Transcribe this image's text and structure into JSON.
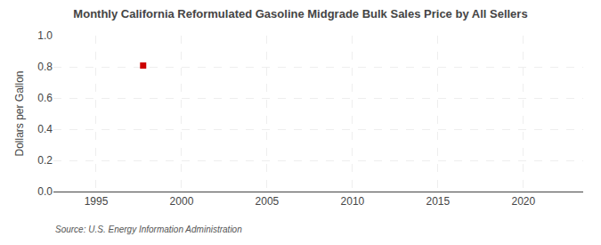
{
  "chart_data": {
    "type": "scatter",
    "title": "Monthly California Reformulated Gasoline Midgrade Bulk Sales Price by All Sellers",
    "ylabel": "Dollars per Gallon",
    "annotations": [
      "Source: U.S. Energy Information Administration"
    ],
    "x": [
      1997.75
    ],
    "values": [
      0.808
    ],
    "color": "#cc0000",
    "marker": "square",
    "xlim": [
      1992.5,
      2023.5
    ],
    "ylim": [
      0.0,
      1.0
    ],
    "xticks": [
      1995,
      2000,
      2005,
      2010,
      2015,
      2020
    ],
    "yticks": [
      {
        "value": 0,
        "label": "0.0"
      },
      0.2,
      0.4,
      0.6,
      0.8,
      {
        "value": 1,
        "label": "1.0"
      }
    ],
    "grid": true
  }
}
